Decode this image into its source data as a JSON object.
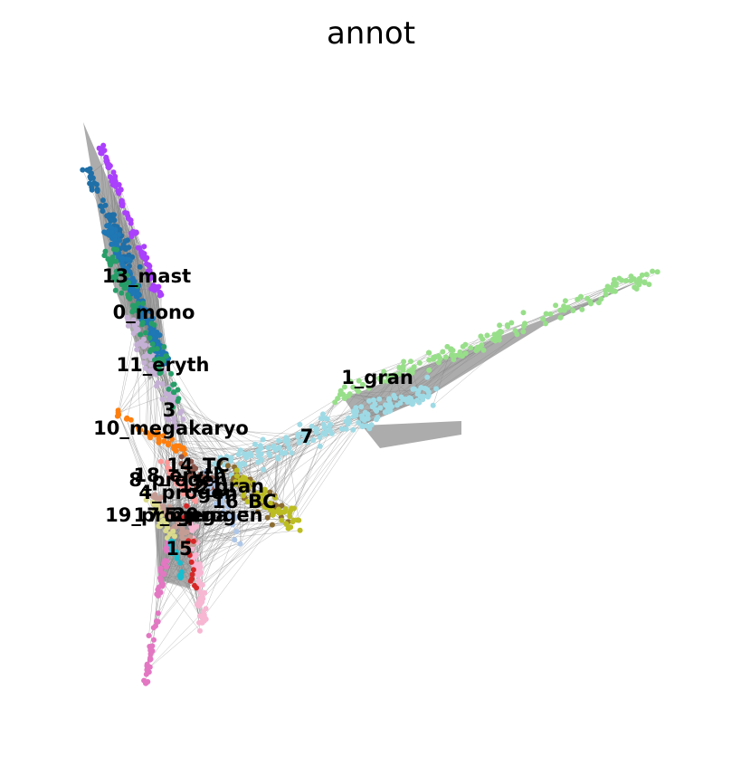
{
  "chart_data": {
    "type": "scatter",
    "subtype": "graph-embedding",
    "title": "annot",
    "xlabel": "",
    "ylabel": "",
    "axes_visible": false,
    "grid": false,
    "legend": "on data",
    "edge_color": "#808080",
    "clusters": [
      {
        "name": "0_mono",
        "color": "#1f77b4"
      },
      {
        "name": "1_gran",
        "color": "#98df8a"
      },
      {
        "name": "3",
        "color": "#c5b0d5"
      },
      {
        "name": "4_progen",
        "color": "#d62728"
      },
      {
        "name": "5_progen",
        "color": "#bcbd22"
      },
      {
        "name": "7",
        "color": "#9edae5"
      },
      {
        "name": "8_progen",
        "color": "#c49c94"
      },
      {
        "name": "10_megakaryo",
        "color": "#ff7f0e"
      },
      {
        "name": "11_eryth",
        "color": "#279e68"
      },
      {
        "name": "12_gran",
        "color": "#aa40fc"
      },
      {
        "name": "13_mast",
        "color": "#1f6fa8"
      },
      {
        "name": "14_TC",
        "color": "#8c564b"
      },
      {
        "name": "15",
        "color": "#e377c2"
      },
      {
        "name": "16_BC",
        "color": "#aec7e8"
      },
      {
        "name": "17_mega",
        "color": "#dbdb8d"
      },
      {
        "name": "18_eryth",
        "color": "#ff9896"
      },
      {
        "name": "19_progen",
        "color": "#17becf"
      },
      {
        "name": "20",
        "color": "#f7b6d2"
      },
      {
        "name": "21",
        "color": "#8c6d31"
      }
    ]
  }
}
